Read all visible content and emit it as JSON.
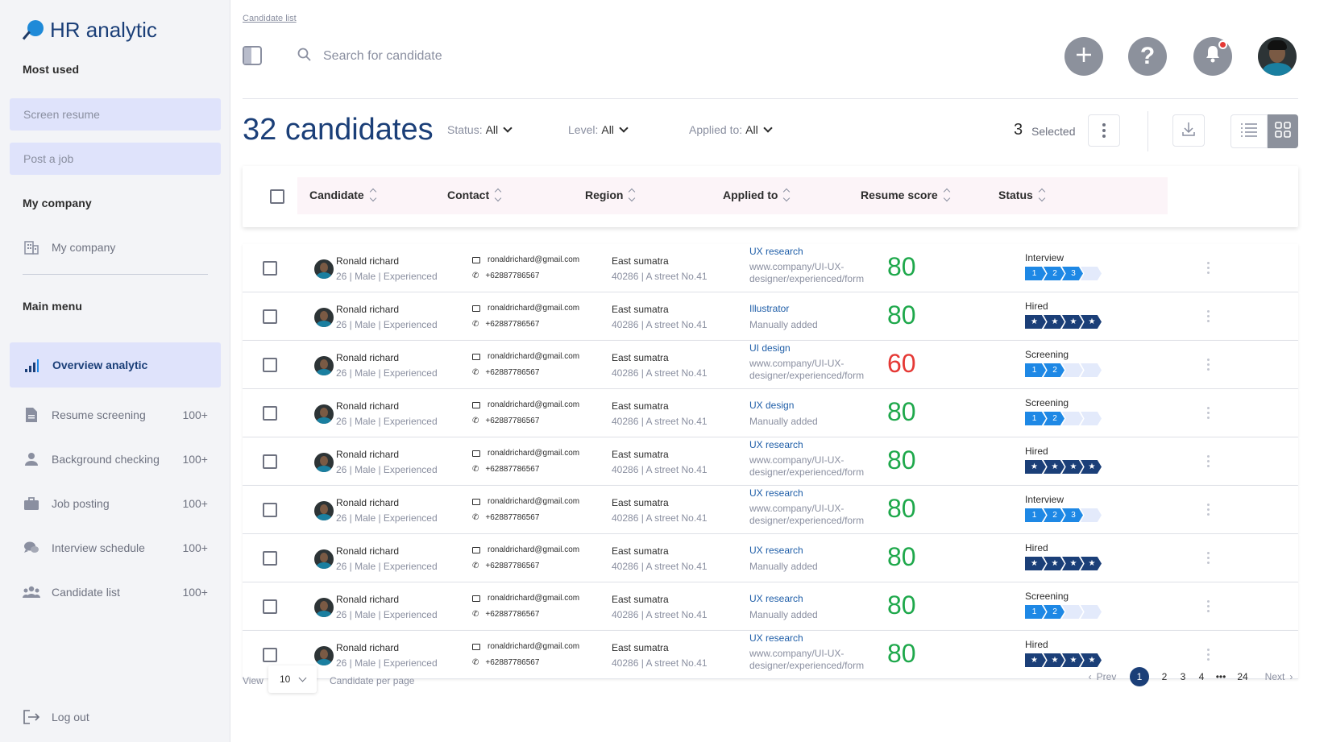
{
  "brand": {
    "name": "HR analytic"
  },
  "sidebar": {
    "most_used_heading": "Most used",
    "quick_buttons": [
      "Screen resume",
      "Post a job"
    ],
    "my_company_heading": "My company",
    "my_company_item": "My company",
    "main_menu_heading": "Main menu",
    "active_item": "Overview analytic",
    "items": [
      {
        "label": "Resume screening",
        "count": "100+",
        "icon": "document-icon"
      },
      {
        "label": "Background checking",
        "count": "100+",
        "icon": "person-icon"
      },
      {
        "label": "Job posting",
        "count": "100+",
        "icon": "briefcase-icon"
      },
      {
        "label": "Interview schedule",
        "count": "100+",
        "icon": "chat-icon"
      },
      {
        "label": "Candidate list",
        "count": "100+",
        "icon": "group-icon"
      }
    ],
    "logout": "Log out"
  },
  "header": {
    "breadcrumb": "Candidate list",
    "search_placeholder": "Search for candidate"
  },
  "toolbar": {
    "title": "32 candidates",
    "filters": [
      {
        "label": "Status:",
        "value": "All"
      },
      {
        "label": "Level:",
        "value": "All"
      },
      {
        "label": "Applied to:",
        "value": "All"
      }
    ],
    "selected_count": "3",
    "selected_label": "Selected"
  },
  "table": {
    "columns": [
      "Candidate",
      "Contact",
      "Region",
      "Applied to",
      "Resume score",
      "Status"
    ],
    "rows": [
      {
        "name": "Ronald richard",
        "meta": "26 | Male | Experienced",
        "email": "ronaldrichard@gmail.com",
        "phone": "+62887786567",
        "region": "East sumatra",
        "address": "40286 | A street No.41",
        "job": "UX research",
        "source": "www.company/UI-UX-designer/experienced/form",
        "score": "80",
        "status": "Interview",
        "stage": 3,
        "hired": false
      },
      {
        "name": "Ronald richard",
        "meta": "26 | Male | Experienced",
        "email": "ronaldrichard@gmail.com",
        "phone": "+62887786567",
        "region": "East sumatra",
        "address": "40286 | A street No.41",
        "job": "Illustrator",
        "source": "Manually added",
        "score": "80",
        "status": "Hired",
        "stage": 4,
        "hired": true
      },
      {
        "name": "Ronald richard",
        "meta": "26 | Male | Experienced",
        "email": "ronaldrichard@gmail.com",
        "phone": "+62887786567",
        "region": "East sumatra",
        "address": "40286 | A street No.41",
        "job": "UI design",
        "source": "www.company/UI-UX-designer/experienced/form",
        "score": "60",
        "status": "Screening",
        "stage": 2,
        "hired": false
      },
      {
        "name": "Ronald richard",
        "meta": "26 | Male | Experienced",
        "email": "ronaldrichard@gmail.com",
        "phone": "+62887786567",
        "region": "East sumatra",
        "address": "40286 | A street No.41",
        "job": "UX design",
        "source": "Manually added",
        "score": "80",
        "status": "Screening",
        "stage": 2,
        "hired": false
      },
      {
        "name": "Ronald richard",
        "meta": "26 | Male | Experienced",
        "email": "ronaldrichard@gmail.com",
        "phone": "+62887786567",
        "region": "East sumatra",
        "address": "40286 | A street No.41",
        "job": "UX research",
        "source": "www.company/UI-UX-designer/experienced/form",
        "score": "80",
        "status": "Hired",
        "stage": 4,
        "hired": true
      },
      {
        "name": "Ronald richard",
        "meta": "26 | Male | Experienced",
        "email": "ronaldrichard@gmail.com",
        "phone": "+62887786567",
        "region": "East sumatra",
        "address": "40286 | A street No.41",
        "job": "UX research",
        "source": "www.company/UI-UX-designer/experienced/form",
        "score": "80",
        "status": "Interview",
        "stage": 3,
        "hired": false
      },
      {
        "name": "Ronald richard",
        "meta": "26 | Male | Experienced",
        "email": "ronaldrichard@gmail.com",
        "phone": "+62887786567",
        "region": "East sumatra",
        "address": "40286 | A street No.41",
        "job": "UX research",
        "source": "Manually added",
        "score": "80",
        "status": "Hired",
        "stage": 4,
        "hired": true
      },
      {
        "name": "Ronald richard",
        "meta": "26 | Male | Experienced",
        "email": "ronaldrichard@gmail.com",
        "phone": "+62887786567",
        "region": "East sumatra",
        "address": "40286 | A street No.41",
        "job": "UX research",
        "source": "Manually added",
        "score": "80",
        "status": "Screening",
        "stage": 2,
        "hired": false
      },
      {
        "name": "Ronald richard",
        "meta": "26 | Male | Experienced",
        "email": "ronaldrichard@gmail.com",
        "phone": "+62887786567",
        "region": "East sumatra",
        "address": "40286 | A street No.41",
        "job": "UX research",
        "source": "www.company/UI-UX-designer/experienced/form",
        "score": "80",
        "status": "Hired",
        "stage": 4,
        "hired": true
      }
    ]
  },
  "footer": {
    "view_label": "View",
    "per_page": "10",
    "per_page_label": "Candidate per page",
    "prev": "Prev",
    "pages": [
      "1",
      "2",
      "3",
      "4",
      "•••",
      "24"
    ],
    "next": "Next"
  },
  "colors": {
    "brand": "#1b3f78",
    "score_good": "#1ea84b",
    "score_low": "#e53935",
    "step_active": "#1e88e5",
    "step_inactive": "#e3eafb",
    "hired_step": "#1b3f78"
  }
}
